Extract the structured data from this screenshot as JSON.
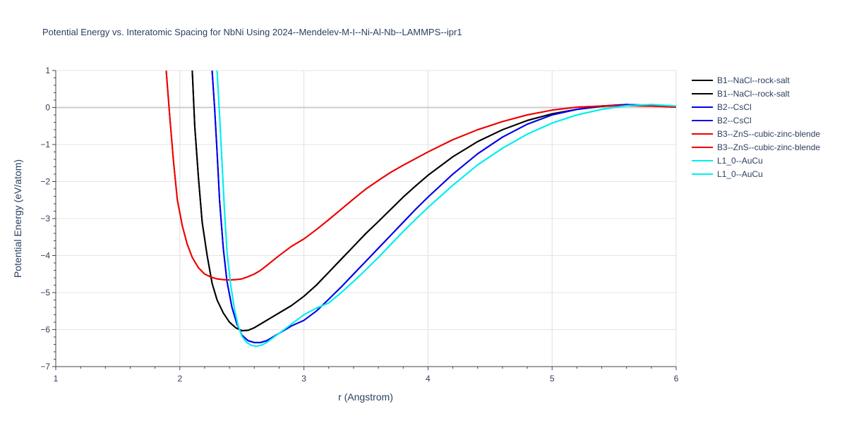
{
  "chart_data": {
    "type": "line",
    "title": "Potential Energy vs. Interatomic Spacing for NbNi Using 2024--Mendelev-M-I--Ni-Al-Nb--LAMMPS--ipr1",
    "xlabel": "r (Angstrom)",
    "ylabel": "Potential Energy (eV/atom)",
    "xlim": [
      1,
      6
    ],
    "ylim": [
      -7,
      1
    ],
    "xticks": [
      1,
      2,
      3,
      4,
      5,
      6
    ],
    "xtick_labels": [
      "1",
      "2",
      "3",
      "4",
      "5",
      "6"
    ],
    "yticks": [
      1,
      0,
      -1,
      -2,
      -3,
      -4,
      -5,
      -6,
      -7
    ],
    "ytick_labels": [
      "1",
      "0",
      "−1",
      "−2",
      "−3",
      "−4",
      "−5",
      "−6",
      "−7"
    ],
    "grid": true,
    "legend_position": "right",
    "series": [
      {
        "name": "B1--NaCl--rock-salt",
        "color": "#000000",
        "x": [
          2.1,
          2.12,
          2.15,
          2.18,
          2.22,
          2.26,
          2.3,
          2.35,
          2.4,
          2.45,
          2.5,
          2.55,
          2.6,
          2.7,
          2.8,
          2.9,
          3.0,
          3.1,
          3.2,
          3.3,
          3.4,
          3.5,
          3.6,
          3.7,
          3.8,
          3.9,
          4.0,
          4.2,
          4.4,
          4.6,
          4.8,
          5.0,
          5.2,
          5.4,
          5.6,
          5.8,
          6.0
        ],
        "y": [
          1.0,
          -0.5,
          -1.9,
          -3.1,
          -4.0,
          -4.75,
          -5.2,
          -5.55,
          -5.8,
          -5.95,
          -6.03,
          -6.02,
          -5.95,
          -5.75,
          -5.55,
          -5.35,
          -5.1,
          -4.8,
          -4.45,
          -4.1,
          -3.75,
          -3.4,
          -3.08,
          -2.75,
          -2.42,
          -2.12,
          -1.83,
          -1.33,
          -0.92,
          -0.6,
          -0.35,
          -0.17,
          -0.05,
          0.03,
          0.07,
          0.05,
          0.02
        ]
      },
      {
        "name": "B1--NaCl--rock-salt",
        "color": "#000000",
        "x": [
          2.1,
          2.12,
          2.15,
          2.18,
          2.22,
          2.26,
          2.3,
          2.35,
          2.4,
          2.45,
          2.5,
          2.55,
          2.6,
          2.7,
          2.8,
          2.9,
          3.0,
          3.1,
          3.2,
          3.3,
          3.4,
          3.5,
          3.6,
          3.7,
          3.8,
          3.9,
          4.0,
          4.2,
          4.4,
          4.6,
          4.8,
          5.0,
          5.2,
          5.4,
          5.6,
          5.8,
          6.0
        ],
        "y": [
          1.0,
          -0.5,
          -1.9,
          -3.1,
          -4.0,
          -4.75,
          -5.2,
          -5.55,
          -5.8,
          -5.95,
          -6.03,
          -6.02,
          -5.95,
          -5.75,
          -5.55,
          -5.35,
          -5.1,
          -4.8,
          -4.45,
          -4.1,
          -3.75,
          -3.4,
          -3.08,
          -2.75,
          -2.42,
          -2.12,
          -1.83,
          -1.33,
          -0.92,
          -0.6,
          -0.35,
          -0.17,
          -0.05,
          0.03,
          0.07,
          0.05,
          0.02
        ]
      },
      {
        "name": "B2--CsCl",
        "color": "#0000ee",
        "x": [
          2.26,
          2.28,
          2.3,
          2.32,
          2.35,
          2.38,
          2.42,
          2.46,
          2.5,
          2.55,
          2.6,
          2.65,
          2.7,
          2.8,
          2.9,
          3.0,
          3.1,
          3.2,
          3.3,
          3.4,
          3.5,
          3.6,
          3.7,
          3.8,
          3.9,
          4.0,
          4.2,
          4.4,
          4.6,
          4.8,
          5.0,
          5.2,
          5.4,
          5.6,
          5.8,
          6.0
        ],
        "y": [
          1.0,
          0.0,
          -1.2,
          -2.5,
          -3.8,
          -4.7,
          -5.4,
          -5.85,
          -6.15,
          -6.3,
          -6.35,
          -6.35,
          -6.3,
          -6.1,
          -5.9,
          -5.75,
          -5.5,
          -5.18,
          -4.85,
          -4.5,
          -4.15,
          -3.8,
          -3.45,
          -3.1,
          -2.75,
          -2.42,
          -1.8,
          -1.25,
          -0.8,
          -0.45,
          -0.2,
          -0.05,
          0.04,
          0.08,
          0.06,
          0.02
        ]
      },
      {
        "name": "B2--CsCl",
        "color": "#0000ee",
        "x": [
          2.26,
          2.28,
          2.3,
          2.32,
          2.35,
          2.38,
          2.42,
          2.46,
          2.5,
          2.55,
          2.6,
          2.65,
          2.7,
          2.8,
          2.9,
          3.0,
          3.1,
          3.2,
          3.3,
          3.4,
          3.5,
          3.6,
          3.7,
          3.8,
          3.9,
          4.0,
          4.2,
          4.4,
          4.6,
          4.8,
          5.0,
          5.2,
          5.4,
          5.6,
          5.8,
          6.0
        ],
        "y": [
          1.0,
          0.0,
          -1.2,
          -2.5,
          -3.8,
          -4.7,
          -5.4,
          -5.85,
          -6.15,
          -6.3,
          -6.35,
          -6.35,
          -6.3,
          -6.1,
          -5.9,
          -5.75,
          -5.5,
          -5.18,
          -4.85,
          -4.5,
          -4.15,
          -3.8,
          -3.45,
          -3.1,
          -2.75,
          -2.42,
          -1.8,
          -1.25,
          -0.8,
          -0.45,
          -0.2,
          -0.05,
          0.04,
          0.08,
          0.06,
          0.02
        ]
      },
      {
        "name": "B3--ZnS--cubic-zinc-blende",
        "color": "#ee0000",
        "x": [
          1.89,
          1.92,
          1.95,
          1.98,
          2.02,
          2.06,
          2.1,
          2.15,
          2.2,
          2.25,
          2.3,
          2.35,
          2.4,
          2.45,
          2.5,
          2.55,
          2.6,
          2.65,
          2.7,
          2.8,
          2.9,
          3.0,
          3.1,
          3.2,
          3.3,
          3.4,
          3.5,
          3.6,
          3.7,
          3.8,
          4.0,
          4.2,
          4.4,
          4.6,
          4.8,
          5.0,
          5.2,
          5.4,
          5.6,
          5.8,
          6.0
        ],
        "y": [
          1.0,
          -0.3,
          -1.5,
          -2.5,
          -3.2,
          -3.7,
          -4.05,
          -4.33,
          -4.5,
          -4.58,
          -4.63,
          -4.65,
          -4.66,
          -4.65,
          -4.63,
          -4.57,
          -4.5,
          -4.4,
          -4.27,
          -4.0,
          -3.75,
          -3.55,
          -3.3,
          -3.03,
          -2.75,
          -2.47,
          -2.2,
          -1.97,
          -1.75,
          -1.56,
          -1.2,
          -0.87,
          -0.6,
          -0.38,
          -0.2,
          -0.07,
          0.01,
          0.04,
          0.05,
          0.04,
          0.01
        ]
      },
      {
        "name": "B3--ZnS--cubic-zinc-blende",
        "color": "#ee0000",
        "x": [
          1.89,
          1.92,
          1.95,
          1.98,
          2.02,
          2.06,
          2.1,
          2.15,
          2.2,
          2.25,
          2.3,
          2.35,
          2.4,
          2.45,
          2.5,
          2.55,
          2.6,
          2.65,
          2.7,
          2.8,
          2.9,
          3.0,
          3.1,
          3.2,
          3.3,
          3.4,
          3.5,
          3.6,
          3.7,
          3.8,
          4.0,
          4.2,
          4.4,
          4.6,
          4.8,
          5.0,
          5.2,
          5.4,
          5.6,
          5.8,
          6.0
        ],
        "y": [
          1.0,
          -0.3,
          -1.5,
          -2.5,
          -3.2,
          -3.7,
          -4.05,
          -4.33,
          -4.5,
          -4.58,
          -4.63,
          -4.65,
          -4.66,
          -4.65,
          -4.63,
          -4.57,
          -4.5,
          -4.4,
          -4.27,
          -4.0,
          -3.75,
          -3.55,
          -3.3,
          -3.03,
          -2.75,
          -2.47,
          -2.2,
          -1.97,
          -1.75,
          -1.56,
          -1.2,
          -0.87,
          -0.6,
          -0.38,
          -0.2,
          -0.07,
          0.01,
          0.04,
          0.05,
          0.04,
          0.01
        ]
      },
      {
        "name": "L1_0--AuCu",
        "color": "#00eeee",
        "x": [
          2.3,
          2.32,
          2.34,
          2.36,
          2.38,
          2.41,
          2.44,
          2.47,
          2.5,
          2.54,
          2.58,
          2.62,
          2.66,
          2.7,
          2.8,
          2.9,
          3.0,
          3.1,
          3.2,
          3.3,
          3.4,
          3.5,
          3.6,
          3.7,
          3.8,
          3.9,
          4.0,
          4.2,
          4.4,
          4.6,
          4.8,
          5.0,
          5.2,
          5.4,
          5.6,
          5.8,
          6.0
        ],
        "y": [
          1.0,
          -0.2,
          -1.5,
          -2.8,
          -3.9,
          -4.8,
          -5.45,
          -5.9,
          -6.18,
          -6.35,
          -6.43,
          -6.45,
          -6.42,
          -6.35,
          -6.1,
          -5.85,
          -5.6,
          -5.42,
          -5.28,
          -5.0,
          -4.7,
          -4.38,
          -4.05,
          -3.7,
          -3.35,
          -3.02,
          -2.7,
          -2.1,
          -1.55,
          -1.1,
          -0.72,
          -0.42,
          -0.2,
          -0.05,
          0.05,
          0.08,
          0.04
        ]
      },
      {
        "name": "L1_0--AuCu",
        "color": "#00eeee",
        "x": [
          2.3,
          2.32,
          2.34,
          2.36,
          2.38,
          2.41,
          2.44,
          2.47,
          2.5,
          2.54,
          2.58,
          2.62,
          2.66,
          2.7,
          2.8,
          2.9,
          3.0,
          3.1,
          3.2,
          3.3,
          3.4,
          3.5,
          3.6,
          3.7,
          3.8,
          3.9,
          4.0,
          4.2,
          4.4,
          4.6,
          4.8,
          5.0,
          5.2,
          5.4,
          5.6,
          5.8,
          6.0
        ],
        "y": [
          1.0,
          -0.2,
          -1.5,
          -2.8,
          -3.9,
          -4.8,
          -5.45,
          -5.9,
          -6.18,
          -6.35,
          -6.43,
          -6.45,
          -6.42,
          -6.35,
          -6.1,
          -5.85,
          -5.6,
          -5.42,
          -5.28,
          -5.0,
          -4.7,
          -4.38,
          -4.05,
          -3.7,
          -3.35,
          -3.02,
          -2.7,
          -2.1,
          -1.55,
          -1.1,
          -0.72,
          -0.42,
          -0.2,
          -0.05,
          0.05,
          0.08,
          0.04
        ]
      }
    ]
  }
}
